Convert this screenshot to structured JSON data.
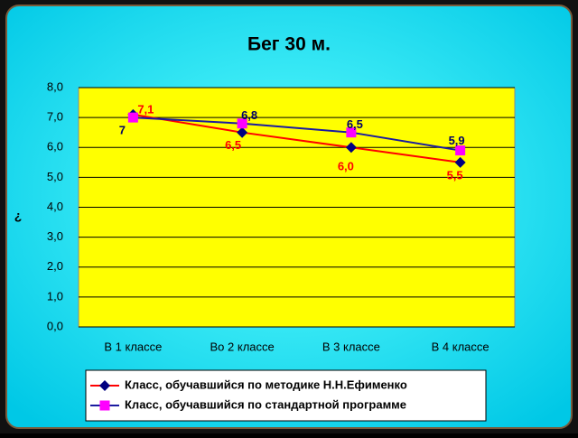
{
  "chart_data": {
    "type": "line",
    "title": "Бег 30 м.",
    "y_label": "¿",
    "categories": [
      "В 1 классе",
      "Во 2 классе",
      "В 3 классе",
      "В 4 классе"
    ],
    "series": [
      {
        "name": "Класс, обучавшийся по методике Н.Н.Ефименко",
        "color": "#ff0000",
        "marker_color": "#000080",
        "marker": "diamond",
        "label_color": "#ff0000",
        "values": [
          7.1,
          6.5,
          6.0,
          5.5
        ],
        "value_labels": [
          "7,1",
          "6,5",
          "6,0",
          "5,5"
        ]
      },
      {
        "name": "Класс, обучавшийся по стандартной программе",
        "color": "#1a1aa0",
        "marker_color": "#ff00ff",
        "marker": "square",
        "label_color": "#000066",
        "values": [
          7,
          6.8,
          6.5,
          5.9
        ],
        "value_labels": [
          "7",
          "6,8",
          "6,5",
          "5,9"
        ]
      }
    ],
    "ylim": [
      0,
      8
    ],
    "yticks": [
      {
        "value": 0,
        "label": "0,0"
      },
      {
        "value": 1,
        "label": "1,0"
      },
      {
        "value": 2,
        "label": "2,0"
      },
      {
        "value": 3,
        "label": "3,0"
      },
      {
        "value": 4,
        "label": "4,0"
      },
      {
        "value": 5,
        "label": "5,0"
      },
      {
        "value": 6,
        "label": "6,0"
      },
      {
        "value": 7,
        "label": "7,0"
      },
      {
        "value": 8,
        "label": "8,0"
      }
    ],
    "grid": true
  }
}
